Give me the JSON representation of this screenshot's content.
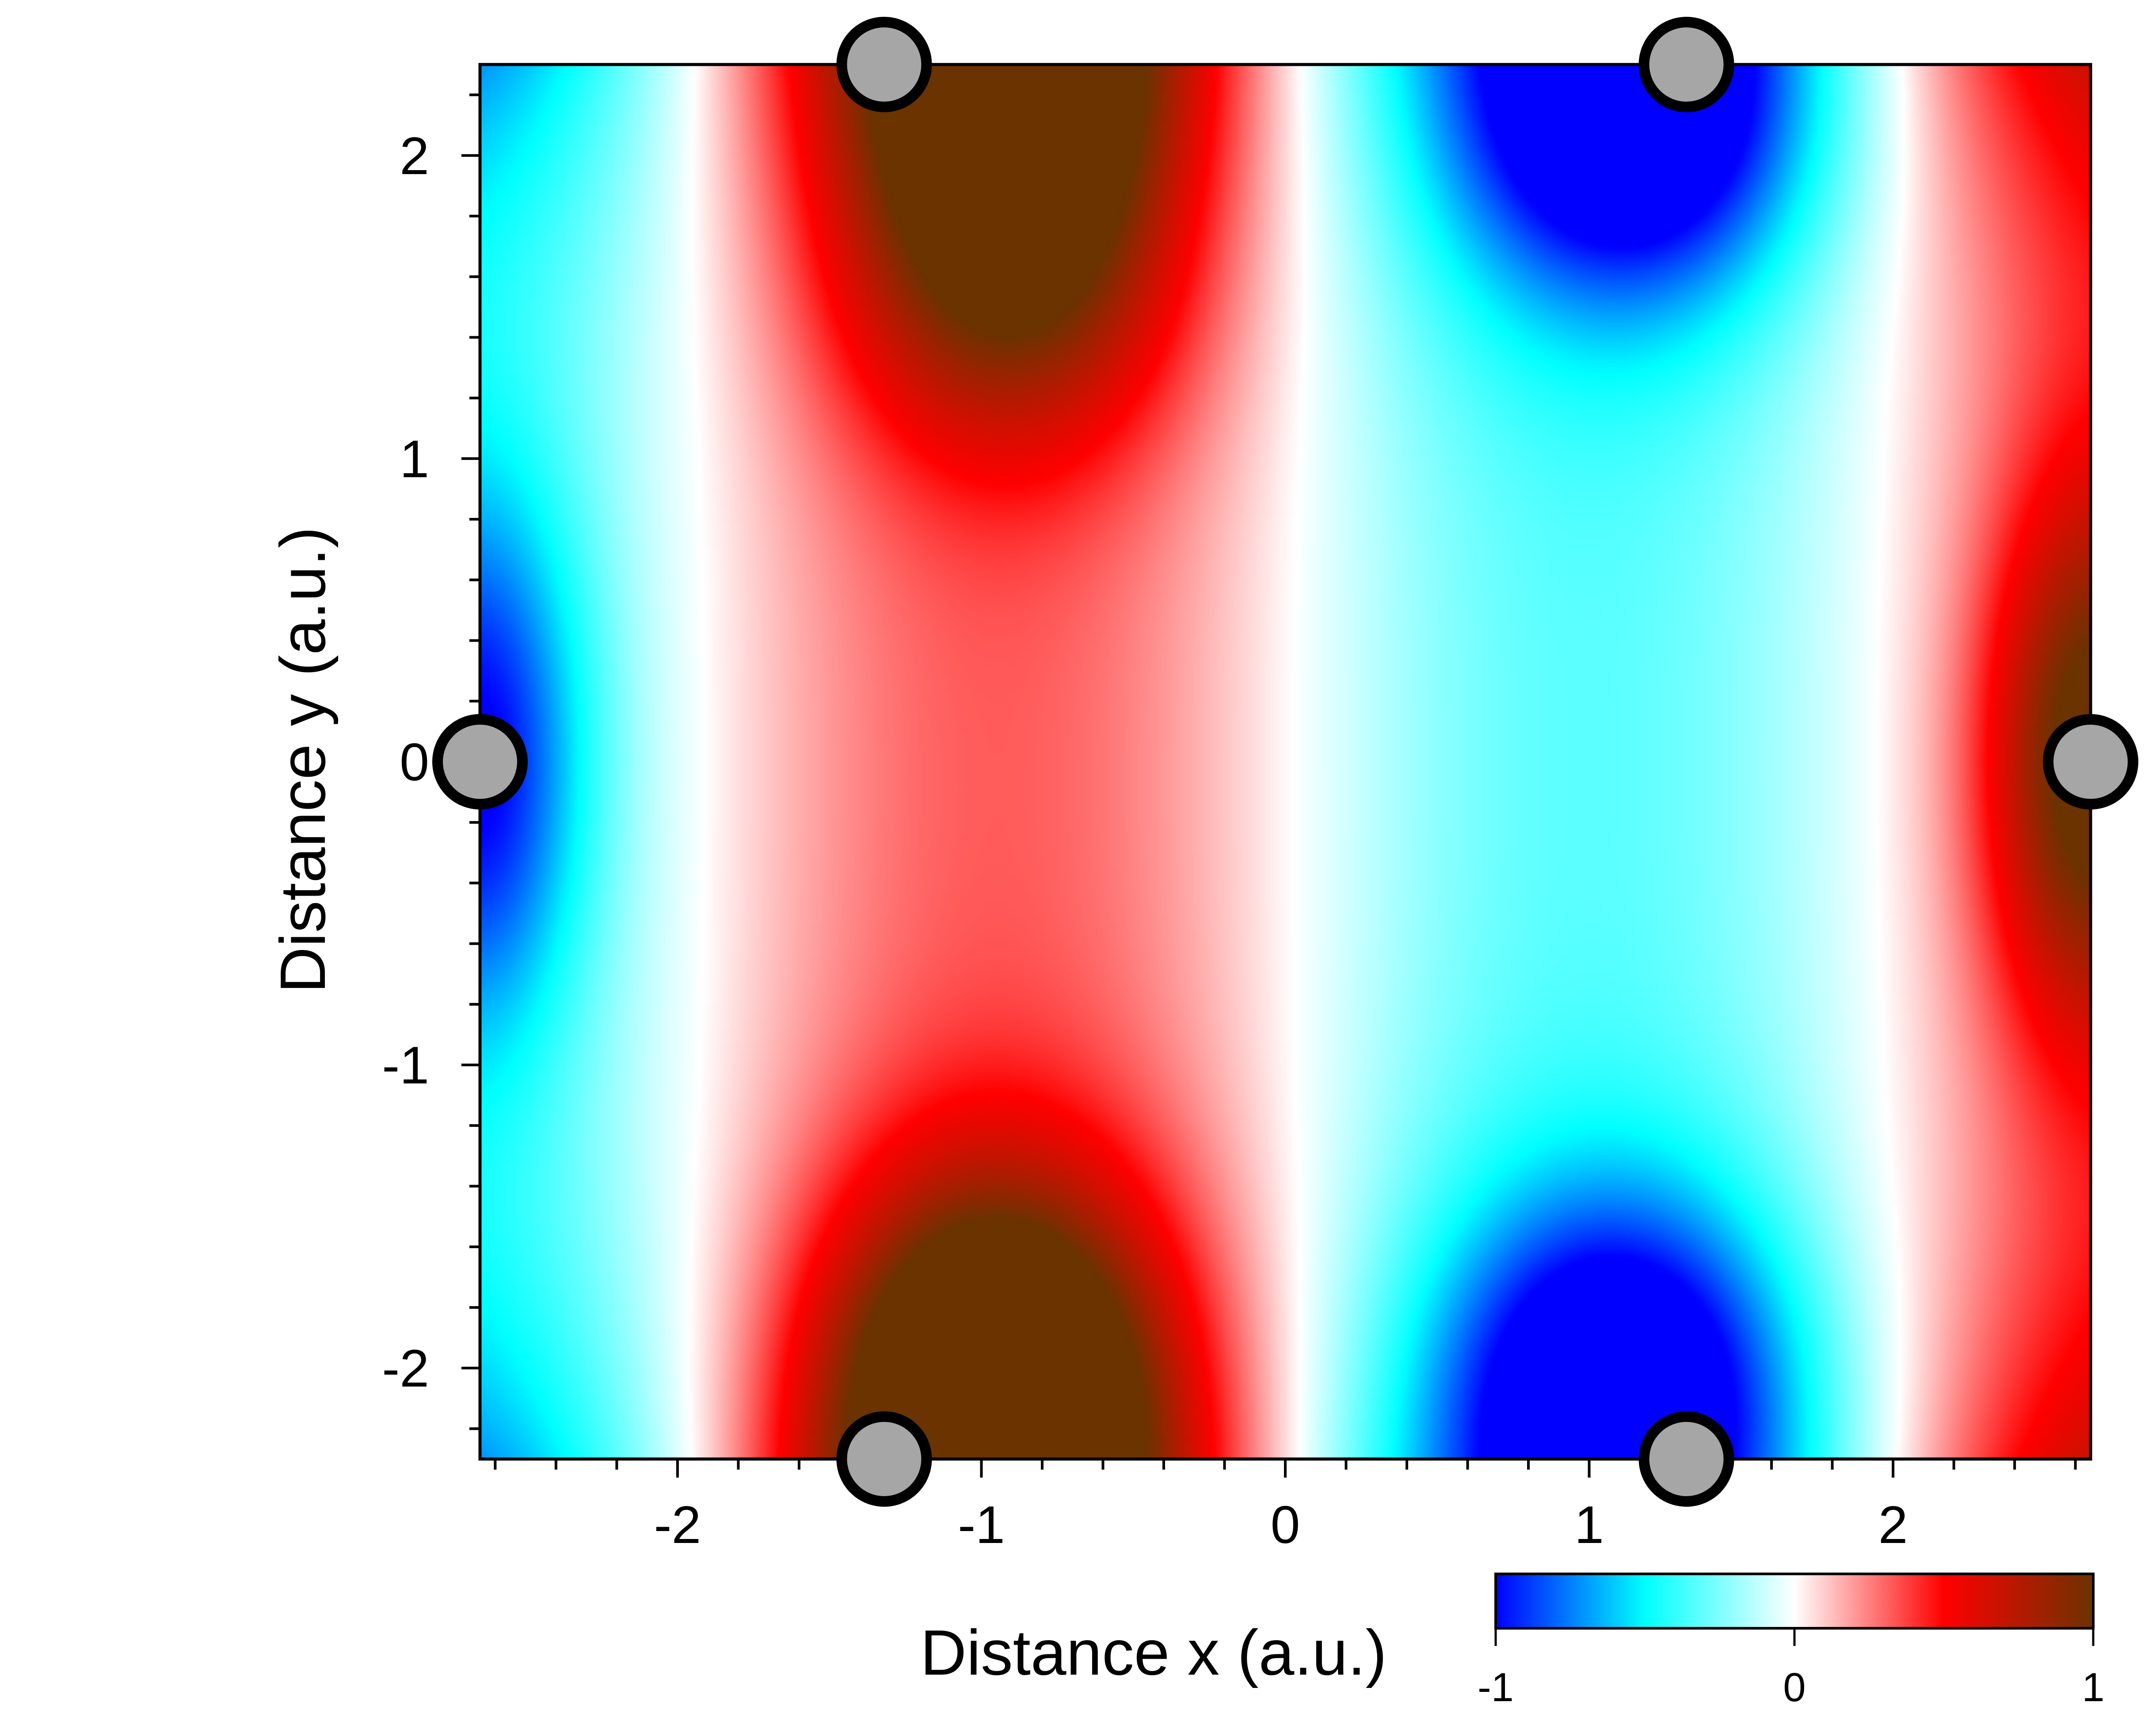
{
  "chart_data": {
    "type": "heatmap",
    "title": "",
    "xlabel": "Distance x (a.u.)",
    "ylabel": "Distance y (a.u.)",
    "xlim": [
      -2.65,
      2.65
    ],
    "ylim": [
      -2.3,
      2.3
    ],
    "xticks": [
      -2,
      -1,
      0,
      1,
      2
    ],
    "xtick_labels": [
      "-2",
      "-1",
      "0",
      "1",
      "2"
    ],
    "yticks": [
      -2,
      -1,
      0,
      1,
      2
    ],
    "ytick_labels": [
      "-2",
      "-1",
      "0",
      "1",
      "2"
    ],
    "x_minor_step": 0.2,
    "y_minor_step": 0.2,
    "grid": false,
    "colorbar": {
      "range": [
        -1,
        1
      ],
      "ticks": [
        -1,
        0,
        1
      ],
      "tick_labels": [
        "-1",
        "0",
        "1"
      ],
      "placement": "bottom-right",
      "colors": [
        "#0000ff",
        "#00ffff",
        "#ffffff",
        "#ff0000",
        "#6b3300"
      ]
    },
    "field": {
      "description_units": "normalized value in colorbar range",
      "period_x": 3.9,
      "center_x": -0.95,
      "phase_x": 0.0
    },
    "markers": [
      {
        "x": -1.32,
        "y": 2.3
      },
      {
        "x": 1.32,
        "y": 2.3
      },
      {
        "x": -2.65,
        "y": 0.0
      },
      {
        "x": 2.65,
        "y": 0.0
      },
      {
        "x": -1.32,
        "y": -2.3
      },
      {
        "x": 1.32,
        "y": -2.3
      }
    ],
    "marker_style": {
      "fill": "#a6a6a6",
      "stroke": "#000000"
    }
  }
}
